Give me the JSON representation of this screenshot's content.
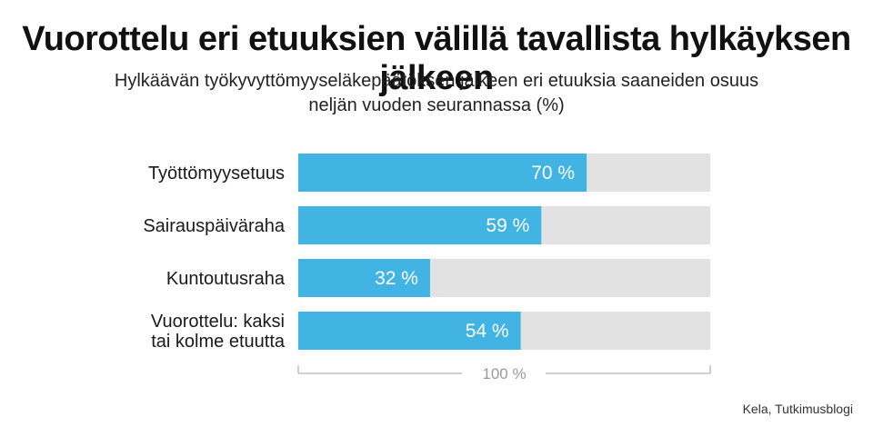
{
  "header": {
    "title": "Vuorottelu eri etuuksien välillä tavallista hylkäyksen jälkeen",
    "subtitle_lines": [
      "Hylkäävän työkyvyttömyyseläkepäätöksen jälkeen eri etuuksia saaneiden osuus",
      "neljän vuoden seurannassa (%)"
    ]
  },
  "source": "Kela, Tutkimusblogi",
  "colors": {
    "bar": "#41b4e4",
    "track": "#e2e2e2",
    "bracket": "#b5b5b5"
  },
  "chart_data": {
    "type": "bar",
    "orientation": "horizontal",
    "categories": [
      [
        "Työttömyysetuus"
      ],
      [
        "Sairauspäiväraha"
      ],
      [
        "Kuntoutusraha"
      ],
      [
        "Vuorottelu: kaksi",
        "tai kolme etuutta"
      ]
    ],
    "values": [
      70,
      59,
      32,
      54
    ],
    "value_labels": [
      "70 %",
      "59 %",
      "32 %",
      "54 %"
    ],
    "xlim": [
      0,
      100
    ],
    "total_label": "100 %",
    "grid": false
  }
}
